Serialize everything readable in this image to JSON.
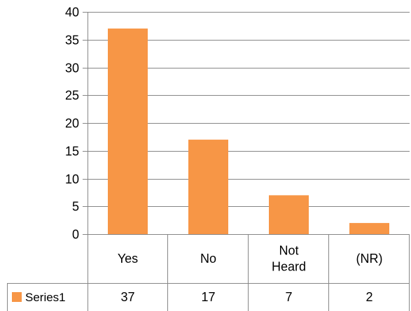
{
  "chart_data": {
    "type": "bar",
    "categories": [
      [
        "Yes"
      ],
      [
        "No"
      ],
      [
        "Not",
        "Heard"
      ],
      [
        "(NR)"
      ]
    ],
    "series": [
      {
        "name": "Series1",
        "values": [
          37,
          17,
          7,
          2
        ],
        "color": "#F79646"
      }
    ],
    "y_ticks": [
      "0",
      "5",
      "10",
      "15",
      "20",
      "25",
      "30",
      "35",
      "40"
    ],
    "ylim": [
      0,
      40
    ],
    "y_step": 5,
    "grid": true,
    "data_table": true,
    "title": "",
    "xlabel": "",
    "ylabel": ""
  }
}
